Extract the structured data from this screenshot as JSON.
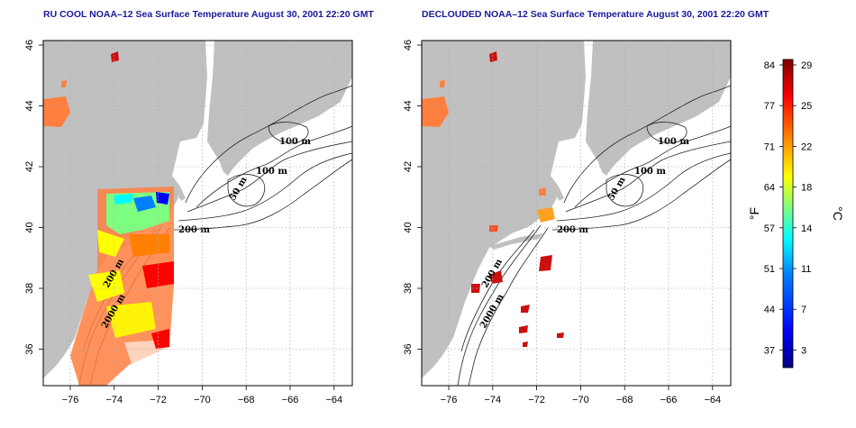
{
  "panels": [
    {
      "title": "RU COOL NOAA–12 Sea Surface Temperature August 30, 2001 22:20 GMT",
      "contour_labels": [
        "100 m",
        "100 m",
        "50 m",
        "200 m",
        "200 m",
        "2000 m"
      ]
    },
    {
      "title": "DECLOUDED NOAA–12 Sea Surface Temperature August 30, 2001 22:20 GMT",
      "contour_labels": [
        "100 m",
        "100 m",
        "50 m",
        "200 m",
        "200 m",
        "2000 m"
      ]
    }
  ],
  "axes": {
    "x_ticks": [
      "−76",
      "−74",
      "−72",
      "−70",
      "−68",
      "−66",
      "−64"
    ],
    "y_ticks": [
      "46",
      "44",
      "42",
      "40",
      "38",
      "36"
    ]
  },
  "colorbar": {
    "fahrenheit_ticks": [
      "84",
      "77",
      "71",
      "64",
      "57",
      "51",
      "44",
      "37"
    ],
    "celsius_ticks": [
      "29",
      "25",
      "22",
      "18",
      "14",
      "11",
      "7",
      "3"
    ],
    "left_unit": "°F",
    "right_unit": "°C",
    "colors": [
      "#00007f",
      "#0000ff",
      "#007fff",
      "#00ffff",
      "#7fff7f",
      "#ffff00",
      "#ff7f00",
      "#ff0000",
      "#7f0000"
    ]
  },
  "colors": {
    "land": "#c0c0c0",
    "grid": "#b0b0b0",
    "title": "#1a1a9a"
  }
}
